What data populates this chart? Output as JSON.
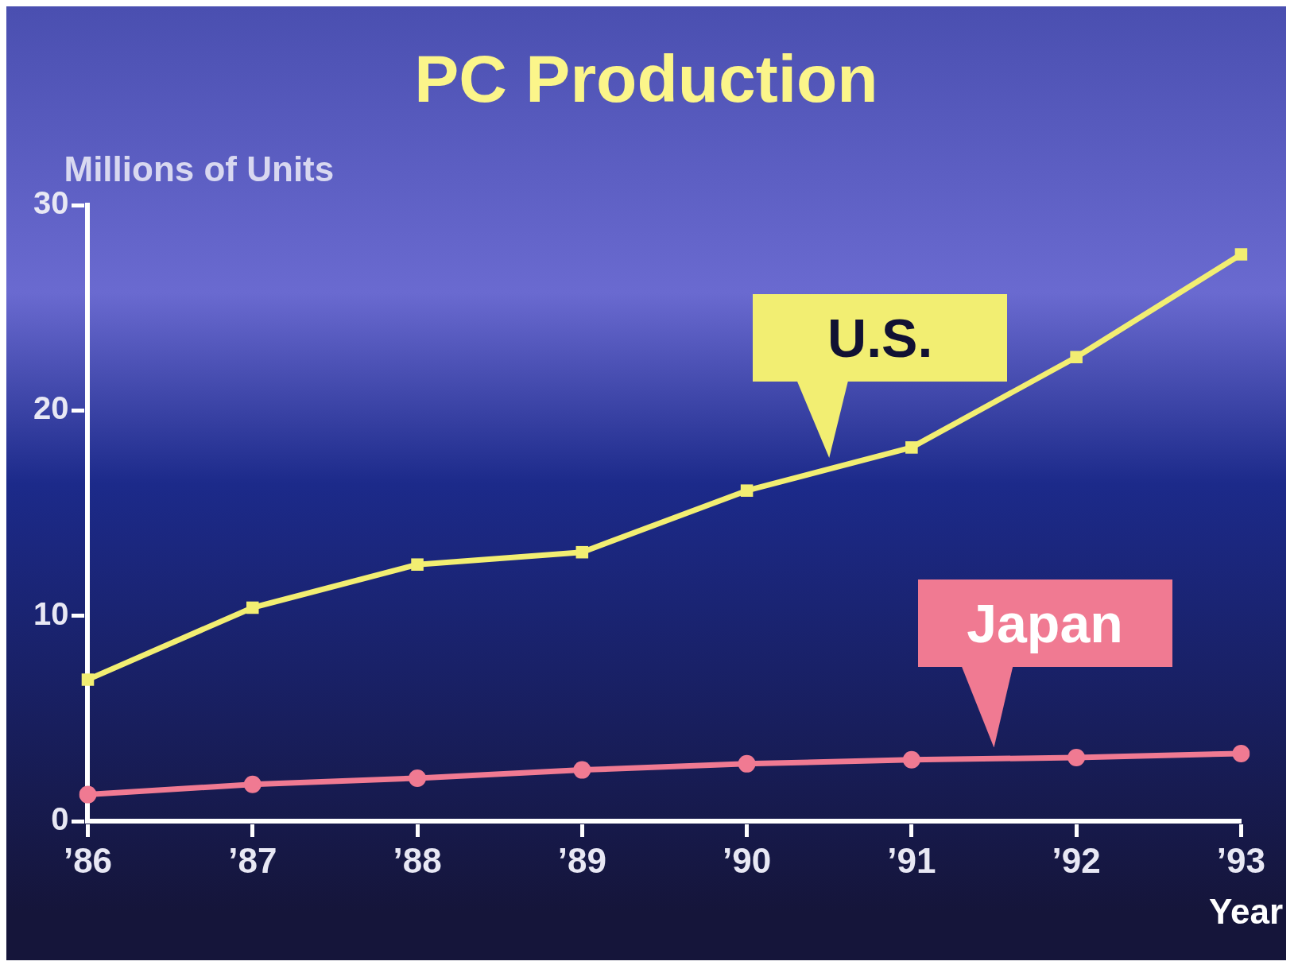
{
  "chart_data": {
    "type": "line",
    "title": "PC Production",
    "ylabel": "Millions of Units",
    "xlabel": "Year",
    "categories": [
      "’86",
      "’87",
      "’88",
      "’89",
      "’90",
      "’91",
      "’92",
      "’93"
    ],
    "series": [
      {
        "name": "U.S.",
        "color": "#f2ee72",
        "marker": "square",
        "values": [
          6.9,
          10.4,
          12.5,
          13.1,
          16.1,
          18.2,
          22.6,
          27.6
        ]
      },
      {
        "name": "Japan",
        "color": "#f07a92",
        "marker": "circle",
        "values": [
          1.3,
          1.8,
          2.1,
          2.5,
          2.8,
          3.0,
          3.1,
          3.3
        ]
      }
    ],
    "ylim": [
      0,
      30
    ],
    "yticks": [
      0,
      10,
      20,
      30
    ],
    "grid": false,
    "legend": false,
    "line_style": "solid"
  }
}
